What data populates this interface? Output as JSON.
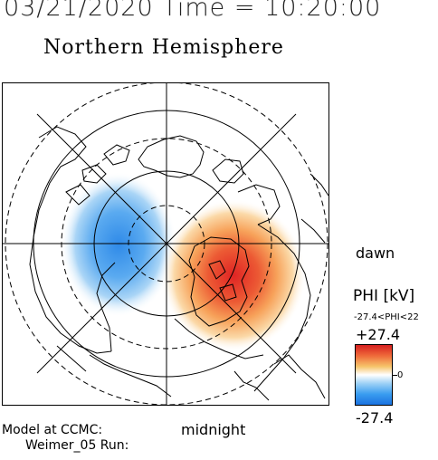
{
  "header": {
    "datetime": "03/21/2020 Time = 10:20:00",
    "hemisphere": "Northern Hemisphere"
  },
  "map": {
    "labels": {
      "dawn": "dawn",
      "midnight": "midnight"
    },
    "potential_cells": [
      {
        "sign": "negative",
        "color": "#2f8fe8"
      },
      {
        "sign": "positive",
        "color": "#e03a2a"
      }
    ]
  },
  "colorbar": {
    "title": "PHI [kV]",
    "range_text": "-27.4<PHI<22",
    "max": "+27.4",
    "zero": "0",
    "min": "-27.4",
    "colors": [
      "#d62020",
      "#f6c46a",
      "#ffffff",
      "#3a9df0",
      "#1a72e0"
    ]
  },
  "footer": {
    "model": "Model at CCMC:",
    "run": "Weimer_05 Run:"
  }
}
